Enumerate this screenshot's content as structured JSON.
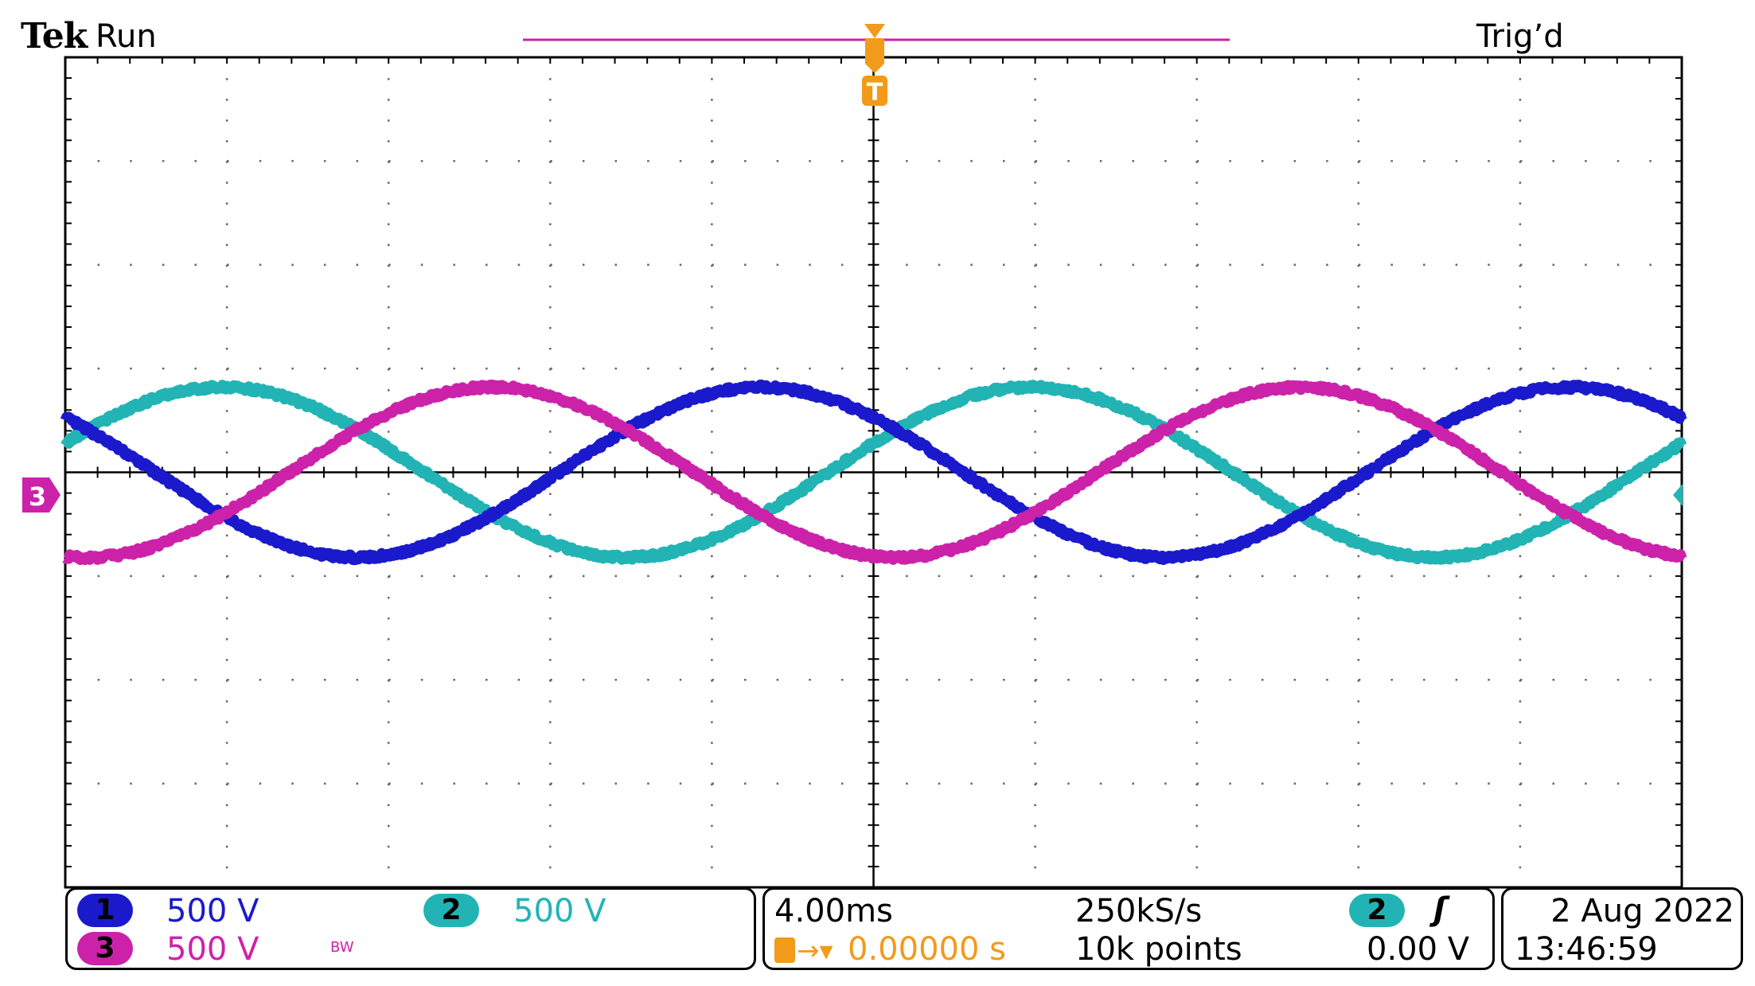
{
  "header": {
    "brand": "Tek",
    "run_state": "Run",
    "trigger_state": "Trig’d"
  },
  "markers": {
    "trigger_marker": "T",
    "ground_marker": "3"
  },
  "channels": [
    {
      "number": "1",
      "scale": "500 V",
      "color": "#1a1acc",
      "bandwidth_limit": ""
    },
    {
      "number": "2",
      "scale": "500 V",
      "color": "#22b4b4",
      "bandwidth_limit": ""
    },
    {
      "number": "3",
      "scale": "500 V",
      "color": "#cc22aa",
      "bandwidth_limit": "BW"
    }
  ],
  "timebase": {
    "scale": "4.00ms",
    "sample_rate": "250kS/s",
    "record_length": "10k points",
    "trigger_position": "0.00000 s"
  },
  "trigger": {
    "source": "2",
    "slope_symbol": "ʃ",
    "level": "0.00 V"
  },
  "datetime": {
    "date": "2 Aug 2022",
    "time": "13:46:59"
  },
  "chart_data": {
    "type": "line",
    "title": "",
    "xlabel": "",
    "ylabel": "",
    "x_divisions": 10,
    "y_divisions": 8,
    "xlim_ms": [
      -20,
      20
    ],
    "ylim_div": [
      -4,
      4
    ],
    "grid": true,
    "period_ms": 20,
    "series": [
      {
        "name": "1",
        "color": "#1a1acc",
        "amplitude_div": 0.82,
        "phase_deg": 140
      },
      {
        "name": "2",
        "color": "#22b4b4",
        "amplitude_div": 0.82,
        "phase_deg": 20
      },
      {
        "name": "3",
        "color": "#cc22aa",
        "amplitude_div": 0.82,
        "phase_deg": 260
      }
    ]
  }
}
